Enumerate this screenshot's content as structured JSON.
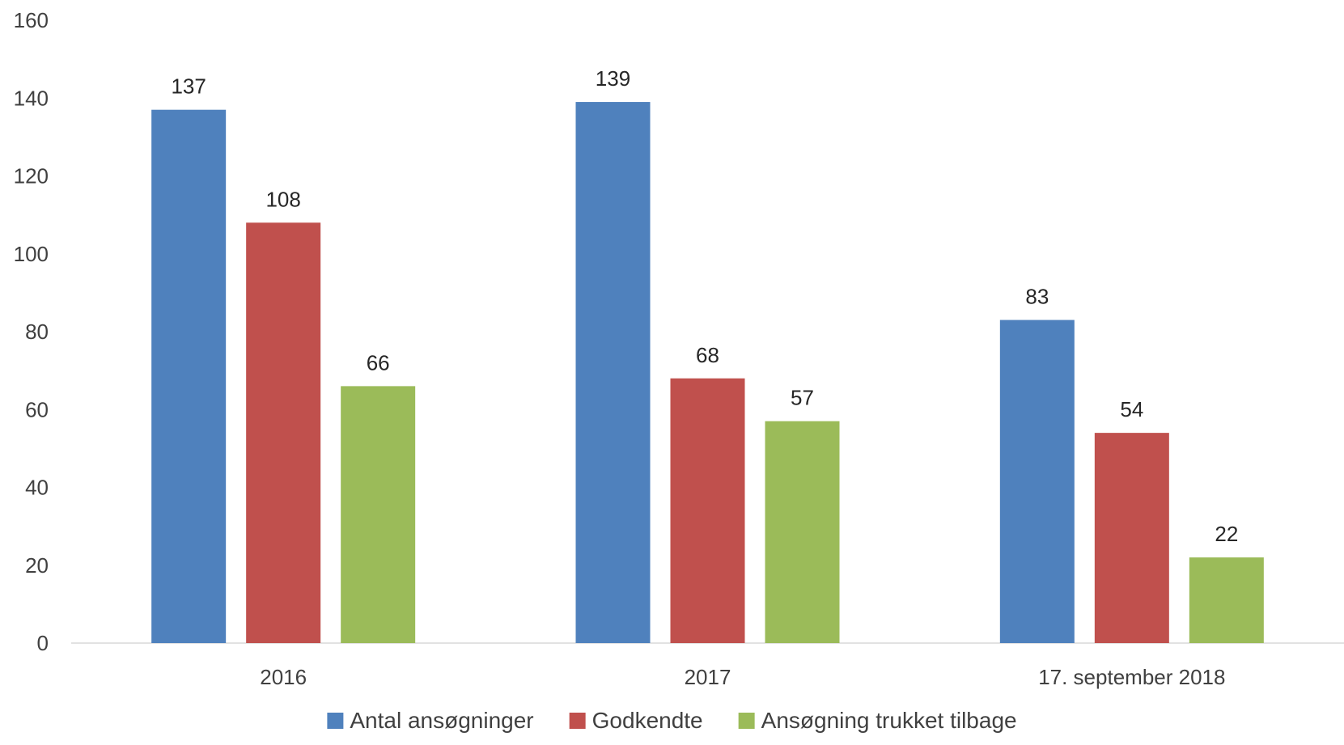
{
  "chart_data": {
    "type": "bar",
    "title": "",
    "xlabel": "",
    "ylabel": "",
    "categories": [
      "2016",
      "2017",
      "17. september 2018"
    ],
    "series": [
      {
        "name": "Antal ansøgninger",
        "color": "#4F81BD",
        "values": [
          137,
          139,
          83
        ]
      },
      {
        "name": "Godkendte",
        "color": "#C0504D",
        "values": [
          108,
          68,
          54
        ]
      },
      {
        "name": "Ansøgning trukket tilbage",
        "color": "#9BBB59",
        "values": [
          66,
          57,
          22
        ]
      }
    ],
    "ylim": [
      0,
      160
    ],
    "yticks": [
      0,
      20,
      40,
      60,
      80,
      100,
      120,
      140,
      160
    ],
    "grid": false,
    "data_labels": true,
    "legend_position": "bottom"
  }
}
